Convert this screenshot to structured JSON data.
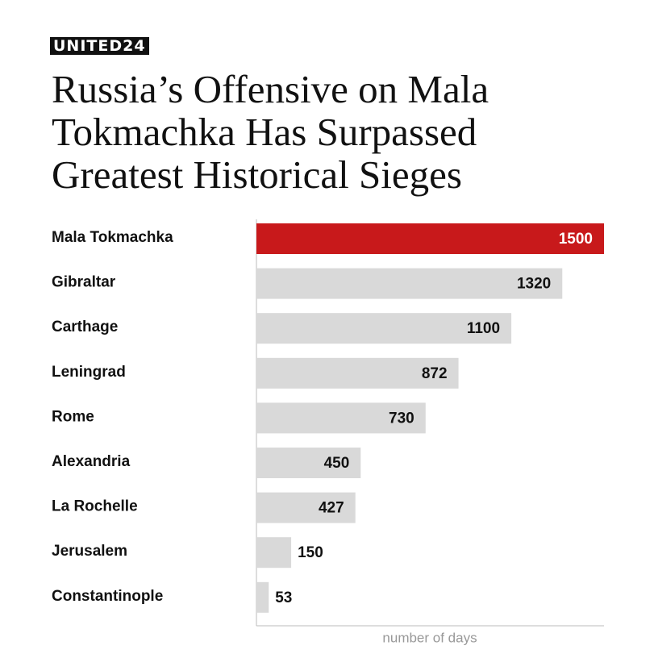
{
  "brand": "UNITED24",
  "chart_data": {
    "type": "hbar",
    "title": "Russia’s Offensive on Mala Tokmachka Has Surpassed Greatest Historical Sieges",
    "categories": [
      "Mala Tokmachka",
      "Gibraltar",
      "Carthage",
      "Leningrad",
      "Rome",
      "Alexandria",
      "La Rochelle",
      "Jerusalem",
      "Constantinople"
    ],
    "values": [
      1500,
      1320,
      1100,
      872,
      730,
      450,
      427,
      150,
      53
    ],
    "colors": [
      "#c8191b",
      "#d9d9d9",
      "#d9d9d9",
      "#d9d9d9",
      "#d9d9d9",
      "#d9d9d9",
      "#d9d9d9",
      "#d9d9d9",
      "#d9d9d9"
    ],
    "xlabel": "number of days",
    "xlim": [
      0,
      1500
    ]
  }
}
